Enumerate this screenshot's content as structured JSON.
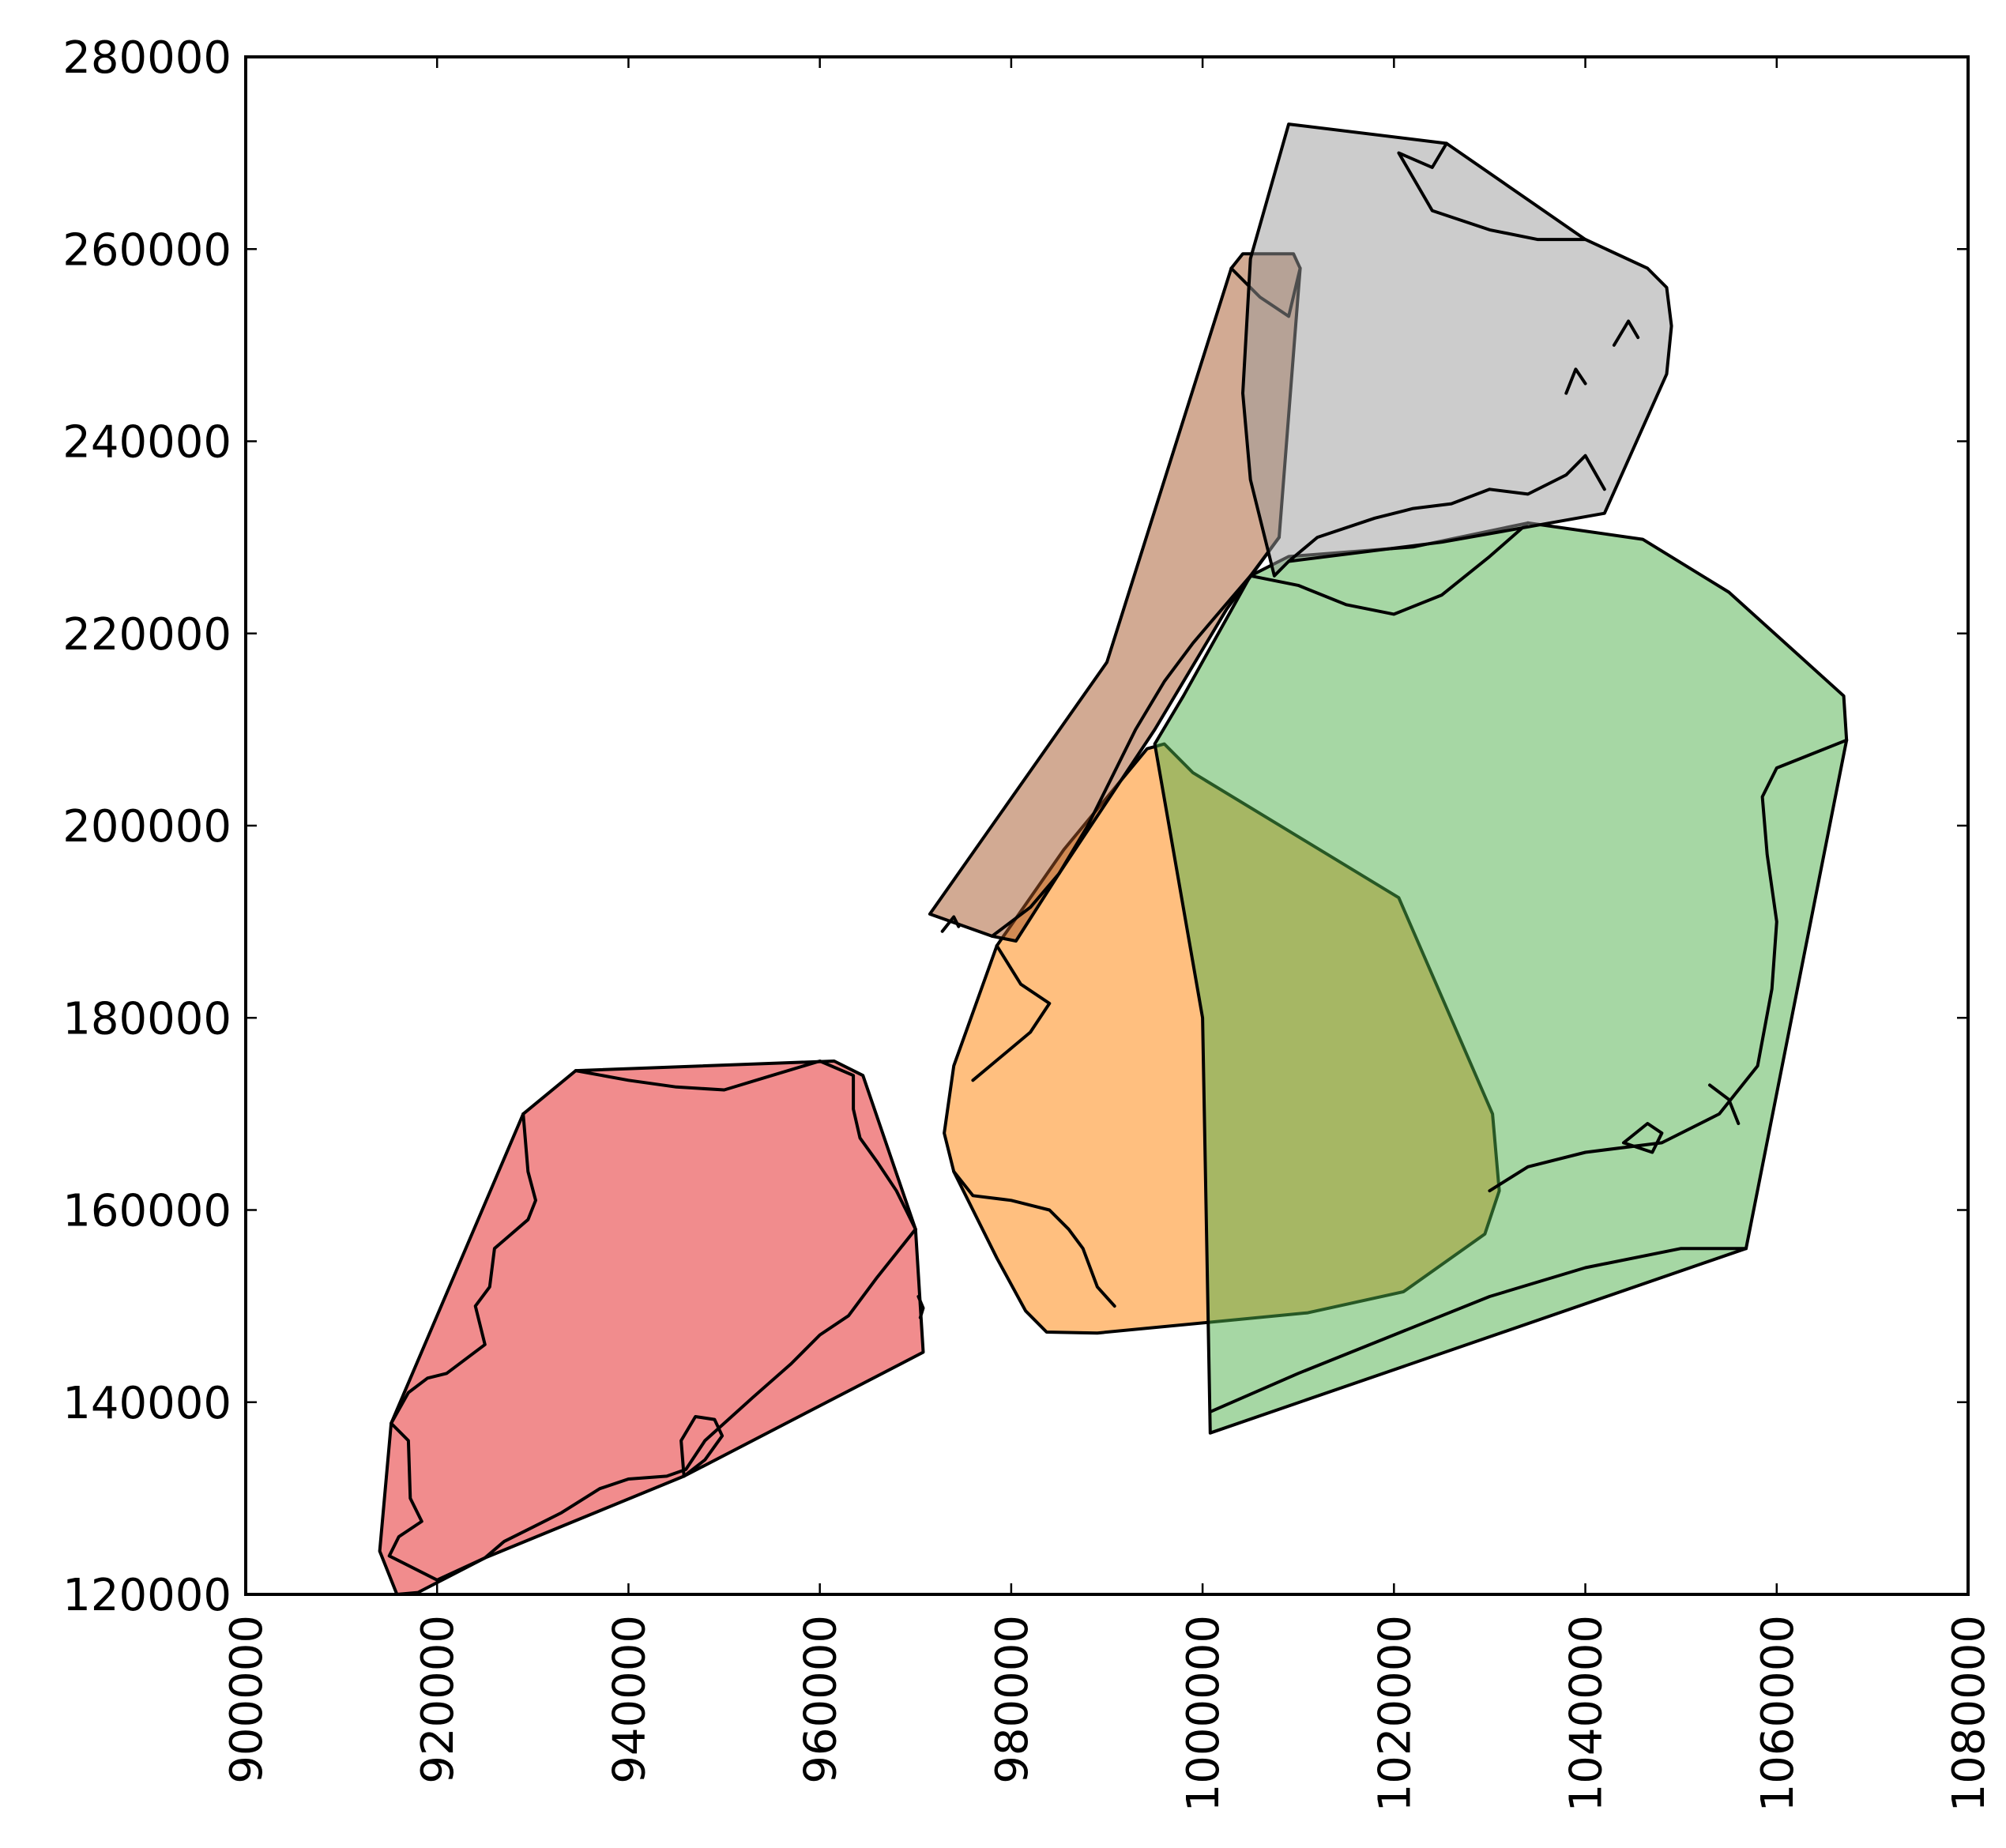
{
  "chart_data": {
    "type": "map",
    "xlim": [
      900000,
      1080000
    ],
    "ylim": [
      120000,
      280000
    ],
    "x_ticks": [
      {
        "value": 900000,
        "label": "900000"
      },
      {
        "value": 920000,
        "label": "920000"
      },
      {
        "value": 940000,
        "label": "940000"
      },
      {
        "value": 960000,
        "label": "960000"
      },
      {
        "value": 980000,
        "label": "980000"
      },
      {
        "value": 1000000,
        "label": "1000000"
      },
      {
        "value": 1020000,
        "label": "1020000"
      },
      {
        "value": 1040000,
        "label": "1040000"
      },
      {
        "value": 1060000,
        "label": "1060000"
      },
      {
        "value": 1080000,
        "label": "1080000"
      }
    ],
    "y_ticks": [
      {
        "value": 120000,
        "label": "120000"
      },
      {
        "value": 140000,
        "label": "140000"
      },
      {
        "value": 160000,
        "label": "160000"
      },
      {
        "value": 180000,
        "label": "180000"
      },
      {
        "value": 200000,
        "label": "200000"
      },
      {
        "value": 220000,
        "label": "220000"
      },
      {
        "value": 240000,
        "label": "240000"
      },
      {
        "value": 260000,
        "label": "260000"
      },
      {
        "value": 280000,
        "label": "280000"
      }
    ],
    "grid": false,
    "legend": "none",
    "hull_opacity": 0.5,
    "regions": [
      {
        "id": "red",
        "color": "#e31a1c",
        "hull": [
          [
            914000,
            124500
          ],
          [
            915200,
            137800
          ],
          [
            929000,
            170000
          ],
          [
            934500,
            174500
          ],
          [
            961500,
            175500
          ],
          [
            964500,
            174000
          ],
          [
            970000,
            158000
          ],
          [
            970800,
            145200
          ],
          [
            945800,
            132300
          ],
          [
            925000,
            123800
          ],
          [
            918000,
            120200
          ],
          [
            915800,
            120000
          ]
        ],
        "boundary": [
          [
            915200,
            137800
          ],
          [
            917000,
            136000
          ],
          [
            917200,
            130000
          ],
          [
            918400,
            127600
          ],
          [
            916000,
            126000
          ],
          [
            915000,
            124000
          ],
          [
            920000,
            121500
          ],
          [
            925000,
            123800
          ],
          [
            927000,
            125500
          ],
          [
            930000,
            127000
          ],
          [
            933000,
            128500
          ],
          [
            937000,
            131000
          ],
          [
            940000,
            132000
          ],
          [
            944000,
            132300
          ],
          [
            946000,
            133000
          ],
          [
            948000,
            136000
          ],
          [
            953000,
            140500
          ],
          [
            957000,
            144000
          ],
          [
            960000,
            147000
          ],
          [
            963000,
            149000
          ],
          [
            966000,
            153000
          ],
          [
            970000,
            158000
          ]
        ],
        "boundary2": [
          [
            929000,
            170000
          ],
          [
            929500,
            164000
          ],
          [
            930300,
            161000
          ],
          [
            929500,
            159000
          ],
          [
            926000,
            156000
          ],
          [
            925500,
            152000
          ],
          [
            924000,
            150000
          ],
          [
            925000,
            146000
          ],
          [
            921000,
            143000
          ],
          [
            919000,
            142500
          ],
          [
            917000,
            141000
          ],
          [
            915200,
            137800
          ]
        ],
        "boundary3": [
          [
            934500,
            174500
          ],
          [
            940000,
            173500
          ],
          [
            945000,
            172800
          ],
          [
            950000,
            172500
          ],
          [
            955000,
            174000
          ],
          [
            960000,
            175500
          ],
          [
            963500,
            174000
          ],
          [
            963500,
            170500
          ],
          [
            964200,
            167500
          ],
          [
            966000,
            165000
          ],
          [
            968000,
            162000
          ],
          [
            970000,
            158000
          ]
        ],
        "islands": [
          [
            [
              945800,
              132300
            ],
            [
              945500,
              136000
            ],
            [
              947000,
              138500
            ],
            [
              949000,
              138200
            ],
            [
              949800,
              136500
            ],
            [
              948000,
              134000
            ],
            [
              945800,
              132300
            ]
          ],
          [
            [
              970300,
              151000
            ],
            [
              970800,
              149800
            ],
            [
              970500,
              148800
            ]
          ]
        ]
      },
      {
        "id": "orange",
        "color": "#ff7f00",
        "hull": [
          [
            973000,
            168000
          ],
          [
            974000,
            164000
          ],
          [
            978500,
            155000
          ],
          [
            981500,
            149500
          ],
          [
            983700,
            147300
          ],
          [
            989000,
            147200
          ],
          [
            1011000,
            149300
          ],
          [
            1021000,
            151500
          ],
          [
            1029500,
            157500
          ],
          [
            1031000,
            162000
          ],
          [
            1030300,
            170000
          ],
          [
            1020500,
            192500
          ],
          [
            999000,
            205500
          ],
          [
            996000,
            208500
          ],
          [
            994200,
            208000
          ],
          [
            985500,
            197500
          ],
          [
            978500,
            187500
          ],
          [
            974000,
            175000
          ]
        ],
        "boundary": [
          [
            974000,
            164000
          ],
          [
            976000,
            161500
          ],
          [
            980000,
            161000
          ],
          [
            984000,
            160000
          ],
          [
            986000,
            158000
          ],
          [
            987500,
            156000
          ],
          [
            989000,
            152000
          ],
          [
            990800,
            150000
          ]
        ],
        "boundary2": [
          [
            978500,
            187500
          ],
          [
            981000,
            183500
          ],
          [
            984000,
            181500
          ],
          [
            982000,
            178500
          ],
          [
            979000,
            176000
          ],
          [
            976000,
            173500
          ]
        ],
        "islands": []
      },
      {
        "id": "green",
        "color": "#4daf4a",
        "hull": [
          [
            1000800,
            136800
          ],
          [
            1056800,
            156000
          ],
          [
            1067300,
            208900
          ],
          [
            1067000,
            213500
          ],
          [
            1055000,
            224300
          ],
          [
            1046000,
            229800
          ],
          [
            1034000,
            231500
          ],
          [
            1022000,
            229000
          ],
          [
            1009000,
            228000
          ],
          [
            1005000,
            226000
          ],
          [
            998000,
            213500
          ],
          [
            995000,
            208500
          ],
          [
            1000000,
            180000
          ]
        ],
        "boundary": [
          [
            1000800,
            139000
          ],
          [
            1010000,
            143000
          ],
          [
            1020000,
            147000
          ],
          [
            1030000,
            151000
          ],
          [
            1040000,
            154000
          ],
          [
            1050000,
            156000
          ],
          [
            1056800,
            156000
          ]
        ],
        "boundary2": [
          [
            1005000,
            226000
          ],
          [
            1010000,
            225000
          ],
          [
            1015000,
            223000
          ],
          [
            1020000,
            222000
          ],
          [
            1025000,
            224000
          ],
          [
            1030000,
            228000
          ],
          [
            1034000,
            231500
          ]
        ],
        "boundary3": [
          [
            1067300,
            208900
          ],
          [
            1060000,
            206000
          ],
          [
            1058500,
            203000
          ],
          [
            1059000,
            197000
          ],
          [
            1060000,
            190000
          ],
          [
            1059500,
            183000
          ],
          [
            1058000,
            175000
          ],
          [
            1054000,
            170000
          ],
          [
            1048000,
            167000
          ],
          [
            1040000,
            166000
          ],
          [
            1034000,
            164500
          ],
          [
            1030000,
            162000
          ]
        ],
        "islands": [
          [
            [
              1053000,
              173000
            ],
            [
              1055000,
              171500
            ],
            [
              1056000,
              169000
            ]
          ],
          [
            [
              1044000,
              167000
            ],
            [
              1046500,
              169000
            ],
            [
              1048000,
              168000
            ],
            [
              1047000,
              166000
            ],
            [
              1044000,
              167000
            ]
          ]
        ]
      },
      {
        "id": "brown",
        "color": "#a65628",
        "hull": [
          [
            971500,
            190800
          ],
          [
            990000,
            217000
          ],
          [
            1003000,
            258000
          ],
          [
            1004200,
            259500
          ],
          [
            1009500,
            259500
          ],
          [
            1010200,
            258000
          ],
          [
            1008000,
            230000
          ],
          [
            1002500,
            222500
          ],
          [
            995000,
            210000
          ],
          [
            985000,
            195000
          ],
          [
            980500,
            188000
          ],
          [
            978000,
            188500
          ]
        ],
        "boundary": [
          [
            978000,
            188500
          ],
          [
            982000,
            191500
          ],
          [
            985000,
            195000
          ],
          [
            988000,
            200000
          ],
          [
            990500,
            205000
          ],
          [
            993000,
            210000
          ],
          [
            996000,
            215000
          ],
          [
            999000,
            219000
          ],
          [
            1002000,
            222500
          ],
          [
            1005000,
            226000
          ],
          [
            1008000,
            230000
          ]
        ],
        "boundary2": [
          [
            1003000,
            258000
          ],
          [
            1006000,
            255000
          ],
          [
            1009000,
            253000
          ],
          [
            1010200,
            258000
          ]
        ],
        "islands": [
          [
            [
              972800,
              189000
            ],
            [
              974000,
              190500
            ],
            [
              974500,
              189500
            ]
          ]
        ]
      },
      {
        "id": "grey",
        "color": "#999999",
        "hull": [
          [
            1005000,
            259000
          ],
          [
            1009000,
            273000
          ],
          [
            1025500,
            271000
          ],
          [
            1040000,
            261000
          ],
          [
            1046500,
            258000
          ],
          [
            1048500,
            256000
          ],
          [
            1049000,
            252000
          ],
          [
            1048500,
            247000
          ],
          [
            1042000,
            232500
          ],
          [
            1025000,
            229500
          ],
          [
            1009000,
            227500
          ],
          [
            1007500,
            226000
          ],
          [
            1005000,
            236000
          ],
          [
            1004200,
            245000
          ]
        ],
        "boundary": [
          [
            1009000,
            227500
          ],
          [
            1012000,
            230000
          ],
          [
            1018000,
            232000
          ],
          [
            1022000,
            233000
          ],
          [
            1026000,
            233500
          ],
          [
            1030000,
            235000
          ],
          [
            1034000,
            234500
          ],
          [
            1038000,
            236500
          ],
          [
            1040000,
            238500
          ],
          [
            1042000,
            235000
          ]
        ],
        "boundary2": [
          [
            1025500,
            271000
          ],
          [
            1024000,
            268500
          ],
          [
            1020500,
            270000
          ],
          [
            1024000,
            264000
          ],
          [
            1030000,
            262000
          ],
          [
            1035000,
            261000
          ],
          [
            1040000,
            261000
          ]
        ],
        "islands": [
          [
            [
              1038000,
              245000
            ],
            [
              1039000,
              247500
            ],
            [
              1040000,
              246000
            ]
          ],
          [
            [
              1043000,
              250000
            ],
            [
              1044500,
              252500
            ],
            [
              1045500,
              250800
            ]
          ]
        ]
      }
    ]
  }
}
